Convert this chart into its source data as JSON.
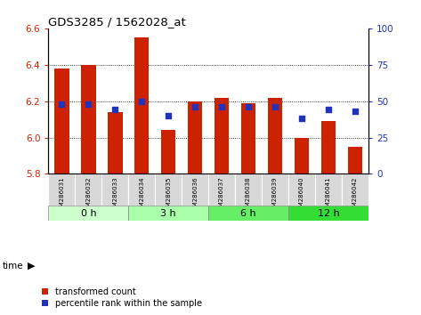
{
  "title": "GDS3285 / 1562028_at",
  "samples": [
    "GSM286031",
    "GSM286032",
    "GSM286033",
    "GSM286034",
    "GSM286035",
    "GSM286036",
    "GSM286037",
    "GSM286038",
    "GSM286039",
    "GSM286040",
    "GSM286041",
    "GSM286042"
  ],
  "transformed_count": [
    6.38,
    6.4,
    6.14,
    6.55,
    6.04,
    6.2,
    6.22,
    6.19,
    6.22,
    6.0,
    6.09,
    5.95
  ],
  "percentile_rank": [
    48,
    48,
    44,
    50,
    40,
    46,
    46,
    46,
    46,
    38,
    44,
    43
  ],
  "ylim_left": [
    5.8,
    6.6
  ],
  "ylim_right": [
    0,
    100
  ],
  "yticks_left": [
    5.8,
    6.0,
    6.2,
    6.4,
    6.6
  ],
  "yticks_right": [
    0,
    25,
    50,
    75,
    100
  ],
  "bar_color": "#cc2200",
  "dot_color": "#2233bb",
  "tick_color_left": "#cc2200",
  "tick_color_right": "#2233bb",
  "bar_width": 0.55,
  "bar_bottom": 5.8,
  "group_defs": [
    {
      "label": "0 h",
      "start": 0,
      "end": 2,
      "color": "#ccffcc"
    },
    {
      "label": "3 h",
      "start": 3,
      "end": 5,
      "color": "#aaffaa"
    },
    {
      "label": "6 h",
      "start": 6,
      "end": 8,
      "color": "#66ee66"
    },
    {
      "label": "12 h",
      "start": 9,
      "end": 11,
      "color": "#33dd33"
    }
  ]
}
